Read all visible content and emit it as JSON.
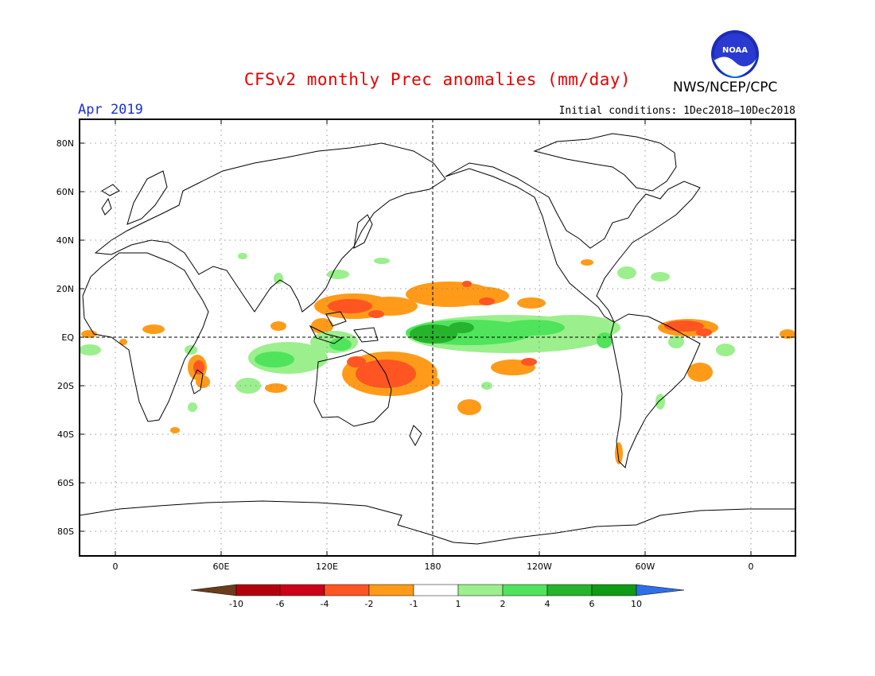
{
  "header": {
    "title": "CFSv2 monthly Prec anomalies (mm/day)",
    "org": "NWS/NCEP/CPC",
    "month": "Apr 2019",
    "initial_conditions": "Initial conditions: 1Dec2018–10Dec2018",
    "logo_text": "NOAA"
  },
  "map": {
    "lat_labels": [
      "80N",
      "60N",
      "40N",
      "20N",
      "EQ",
      "20S",
      "40S",
      "60S",
      "80S"
    ],
    "lon_labels": [
      "0",
      "60E",
      "120E",
      "180",
      "120W",
      "60W",
      "0"
    ]
  },
  "legend": {
    "labels": [
      "-10",
      "-6",
      "-4",
      "-2",
      "-1",
      "1",
      "2",
      "4",
      "6",
      "10"
    ],
    "colors": [
      "#6b3c1c",
      "#b3000f",
      "#cc0019",
      "#ff5522",
      "#ff9b19",
      "#ffffff",
      "#9bef8c",
      "#4fe45b",
      "#25b42c",
      "#0f9c14",
      "#2f6ee8"
    ]
  }
}
